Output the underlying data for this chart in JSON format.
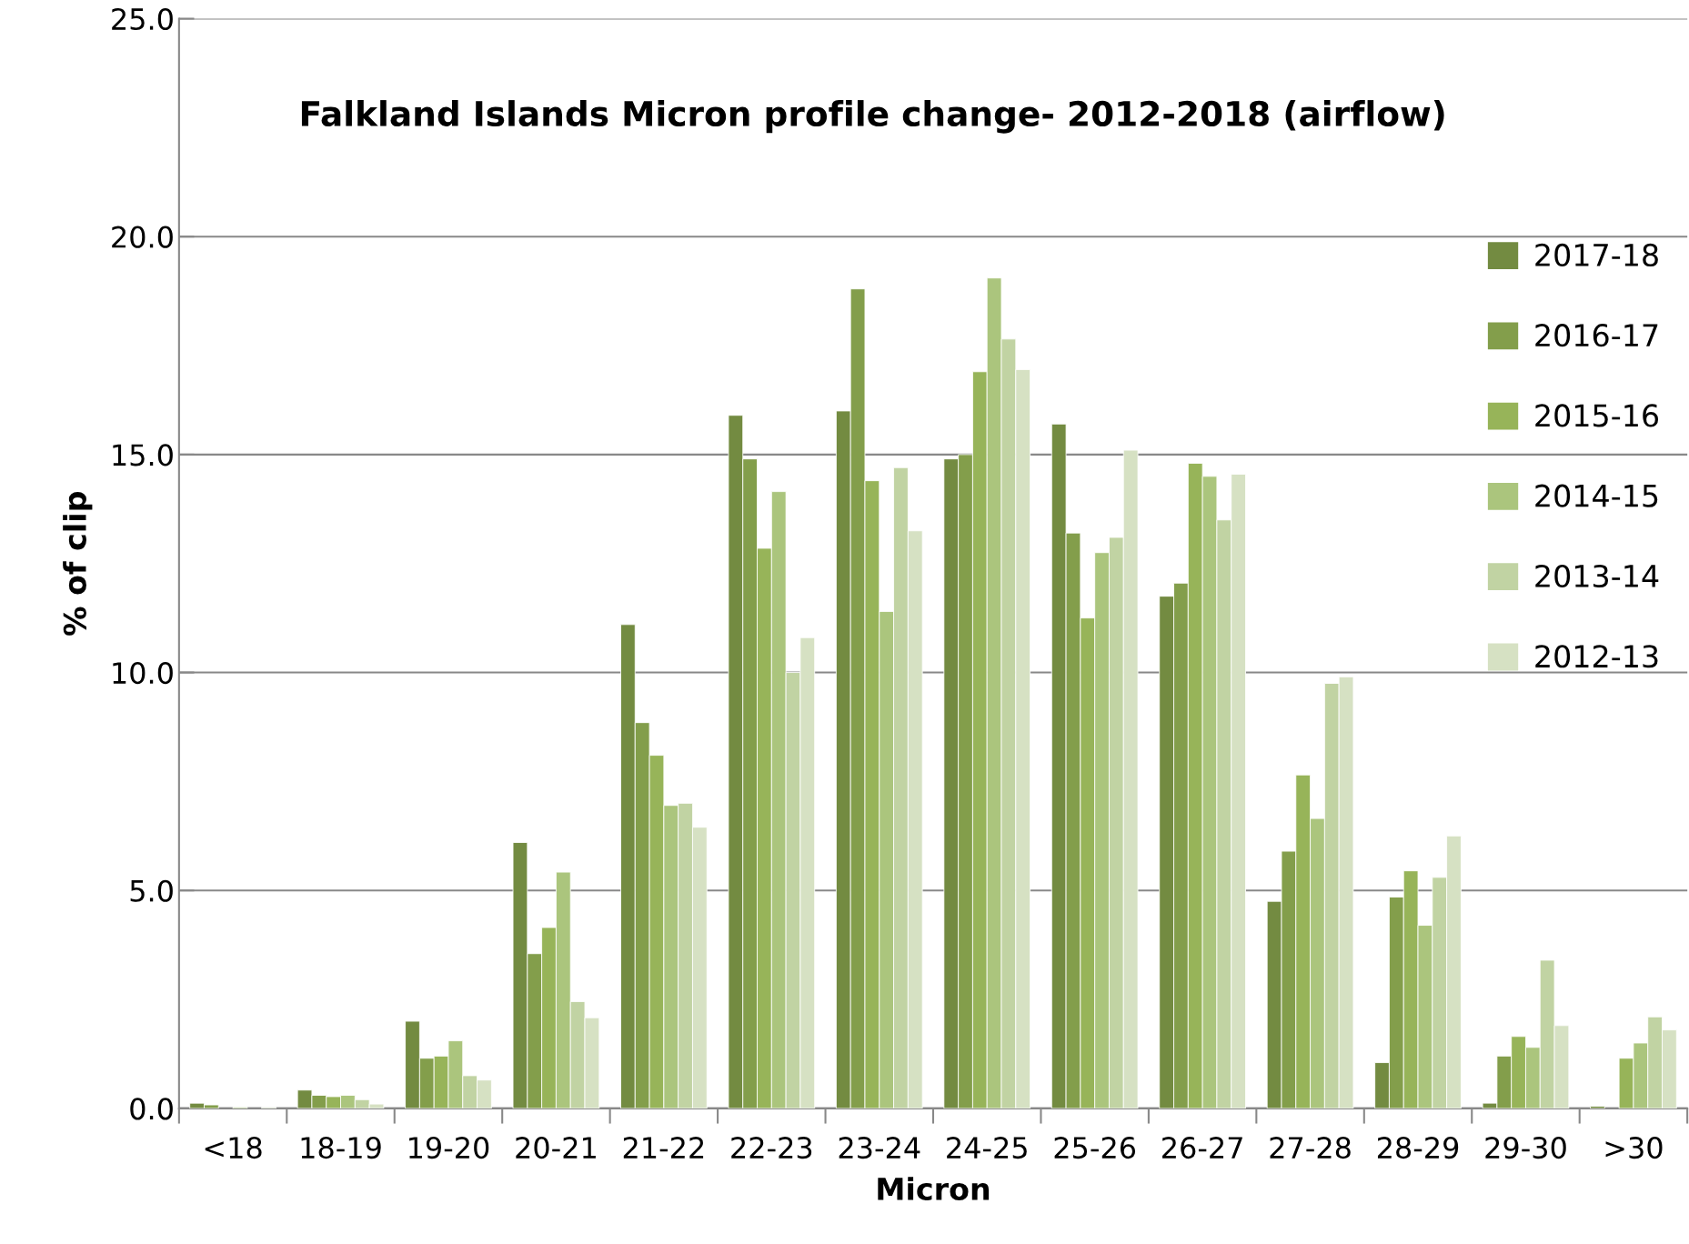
{
  "chart_data": {
    "type": "bar",
    "title": "Falkland Islands Micron profile change- 2012-2018 (airflow)",
    "xlabel": "Micron",
    "ylabel": "% of clip",
    "categories": [
      "<18",
      "18-19",
      "19-20",
      "20-21",
      "21-22",
      "22-23",
      "23-24",
      "24-25",
      "25-26",
      "26-27",
      "27-28",
      "28-29",
      "29-30",
      ">30"
    ],
    "series": [
      {
        "name": "2017-18",
        "color": "#738b41",
        "values": [
          0.12,
          0.42,
          2.0,
          6.1,
          11.1,
          15.9,
          16.0,
          14.9,
          15.7,
          11.75,
          4.75,
          1.05,
          0.12,
          0.05
        ]
      },
      {
        "name": "2016-17",
        "color": "#839e4b",
        "values": [
          0.08,
          0.3,
          1.15,
          3.55,
          8.85,
          14.9,
          18.8,
          15.0,
          13.2,
          12.05,
          5.9,
          4.85,
          1.2,
          null
        ]
      },
      {
        "name": "2015-16",
        "color": "#97b459",
        "values": [
          null,
          0.27,
          1.2,
          4.15,
          8.1,
          12.85,
          14.4,
          16.9,
          11.25,
          14.8,
          7.65,
          5.45,
          1.65,
          1.15
        ]
      },
      {
        "name": "2014-15",
        "color": "#abc57d",
        "values": [
          0.03,
          0.3,
          1.55,
          5.42,
          6.95,
          14.15,
          11.4,
          19.05,
          12.75,
          14.5,
          6.65,
          4.2,
          1.4,
          1.5
        ]
      },
      {
        "name": "2013-14",
        "color": "#c1d3a3",
        "values": [
          null,
          0.2,
          0.75,
          2.45,
          7.0,
          10.0,
          14.7,
          17.65,
          13.1,
          13.5,
          9.75,
          5.3,
          3.4,
          2.1
        ]
      },
      {
        "name": "2012-13",
        "color": "#d6e1c3",
        "values": [
          0.03,
          0.1,
          0.65,
          2.08,
          6.45,
          10.8,
          13.25,
          16.95,
          15.1,
          14.55,
          9.9,
          6.25,
          1.9,
          1.8
        ]
      }
    ],
    "ylim": [
      0,
      25
    ],
    "yticks": [
      {
        "value": 0,
        "label": "0.0"
      },
      {
        "value": 5,
        "label": "5.0"
      },
      {
        "value": 10,
        "label": "10.0"
      },
      {
        "value": 15,
        "label": "15.0"
      },
      {
        "value": 20,
        "label": "20.0"
      },
      {
        "value": 25,
        "label": "25.0"
      }
    ],
    "grid": "y",
    "legend": "top right"
  }
}
